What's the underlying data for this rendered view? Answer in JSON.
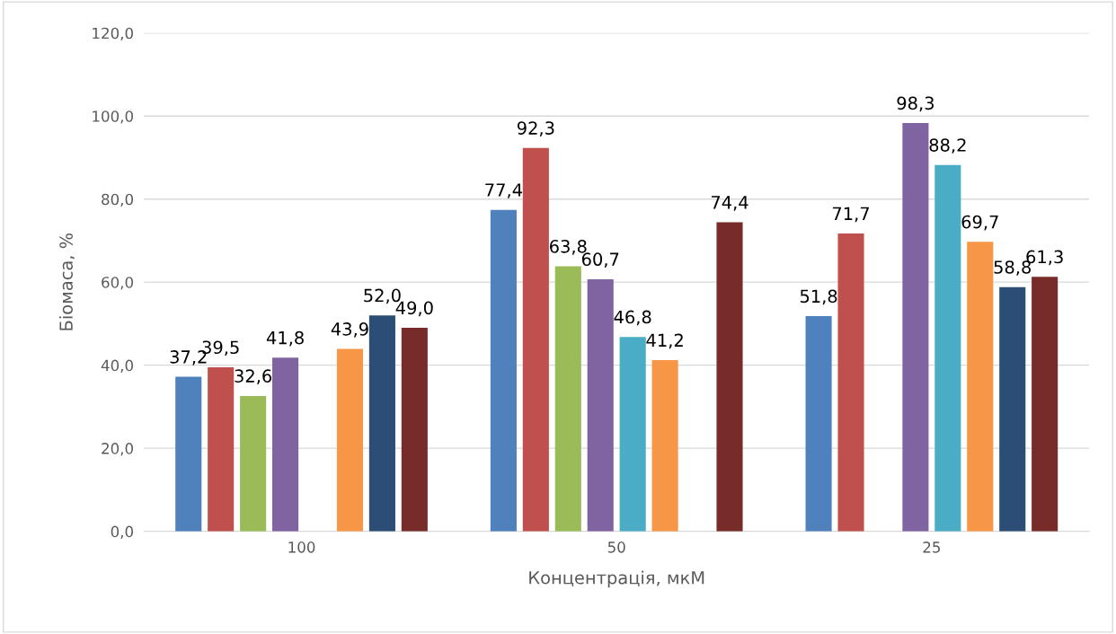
{
  "chart_data": {
    "type": "bar",
    "xlabel": "Концентрація, мкМ",
    "ylabel": "Біомаса, %",
    "categories": [
      "100",
      "50",
      "25"
    ],
    "series": [
      {
        "color": "#4f81bd",
        "values": [
          37.2,
          77.4,
          51.8
        ],
        "value_labels": [
          "37,2",
          "77,4",
          "51,8"
        ]
      },
      {
        "color": "#c0504d",
        "values": [
          39.5,
          92.3,
          71.7
        ],
        "value_labels": [
          "39,5",
          "92,3",
          "71,7"
        ]
      },
      {
        "color": "#9bbb59",
        "values": [
          32.6,
          63.8,
          null
        ],
        "value_labels": [
          "32,6",
          "63,8",
          null
        ]
      },
      {
        "color": "#8064a2",
        "values": [
          41.8,
          60.7,
          98.3
        ],
        "value_labels": [
          "41,8",
          "60,7",
          "98,3"
        ]
      },
      {
        "color": "#4bacc6",
        "values": [
          null,
          46.8,
          88.2
        ],
        "value_labels": [
          null,
          "46,8",
          "88,2"
        ]
      },
      {
        "color": "#f79646",
        "values": [
          43.9,
          41.2,
          69.7
        ],
        "value_labels": [
          "43,9",
          "41,2",
          "69,7"
        ]
      },
      {
        "color": "#2c4d75",
        "values": [
          52.0,
          null,
          58.8
        ],
        "value_labels": [
          "52,0",
          null,
          "58,8"
        ]
      },
      {
        "color": "#772c2a",
        "values": [
          49.0,
          74.4,
          61.3
        ],
        "value_labels": [
          "49,0",
          "74,4",
          "61,3"
        ]
      }
    ],
    "ylim": [
      0,
      120
    ],
    "yticks": [
      {
        "value": 0,
        "label": "0,0"
      },
      {
        "value": 20,
        "label": "20,0"
      },
      {
        "value": 40,
        "label": "40,0"
      },
      {
        "value": 60,
        "label": "60,0"
      },
      {
        "value": 80,
        "label": "80,0"
      },
      {
        "value": 100,
        "label": "100,0"
      },
      {
        "value": 120,
        "label": "120,0"
      }
    ],
    "grid": "y",
    "legend": false
  }
}
